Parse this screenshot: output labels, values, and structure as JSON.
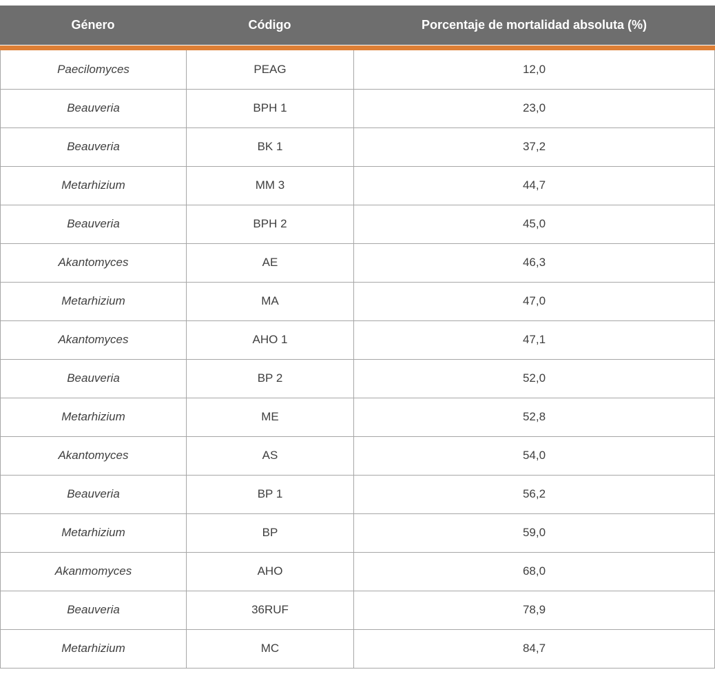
{
  "table": {
    "headers": [
      "Género",
      "Código",
      "Porcentaje de mortalidad absoluta (%)"
    ],
    "rows": [
      {
        "genero": "Paecilomyces",
        "codigo": "PEAG",
        "porcentaje": "12,0"
      },
      {
        "genero": "Beauveria",
        "codigo": "BPH 1",
        "porcentaje": "23,0"
      },
      {
        "genero": "Beauveria",
        "codigo": "BK 1",
        "porcentaje": "37,2"
      },
      {
        "genero": "Metarhizium",
        "codigo": "MM 3",
        "porcentaje": "44,7"
      },
      {
        "genero": "Beauveria",
        "codigo": "BPH 2",
        "porcentaje": "45,0"
      },
      {
        "genero": "Akantomyces",
        "codigo": "AE",
        "porcentaje": "46,3"
      },
      {
        "genero": "Metarhizium",
        "codigo": "MA",
        "porcentaje": "47,0"
      },
      {
        "genero": "Akantomyces",
        "codigo": "AHO 1",
        "porcentaje": "47,1"
      },
      {
        "genero": "Beauveria",
        "codigo": "BP 2",
        "porcentaje": "52,0"
      },
      {
        "genero": "Metarhizium",
        "codigo": "ME",
        "porcentaje": "52,8"
      },
      {
        "genero": "Akantomyces",
        "codigo": "AS",
        "porcentaje": "54,0"
      },
      {
        "genero": "Beauveria",
        "codigo": "BP 1",
        "porcentaje": "56,2"
      },
      {
        "genero": "Metarhizium",
        "codigo": "BP",
        "porcentaje": "59,0"
      },
      {
        "genero": "Akanmomyces",
        "codigo": "AHO",
        "porcentaje": "68,0"
      },
      {
        "genero": "Beauveria",
        "codigo": "36RUF",
        "porcentaje": "78,9"
      },
      {
        "genero": "Metarhizium",
        "codigo": "MC",
        "porcentaje": "84,7"
      }
    ]
  },
  "colors": {
    "header_bg": "#6E6E6E",
    "accent": "#DE7F35",
    "grid": "#A6A6A6",
    "text": "#3F3F3F"
  }
}
